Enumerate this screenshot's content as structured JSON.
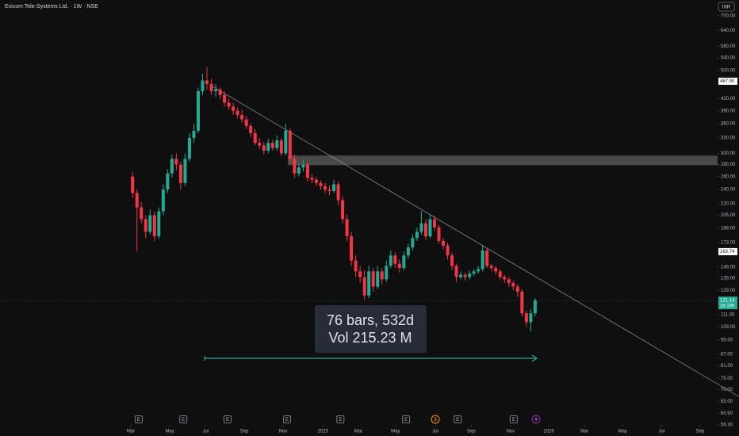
{
  "chart_data": {
    "type": "candlestick",
    "title": "Exicom Tele-Systems Ltd. · 1W · NSE",
    "currency": "INR",
    "log_scale": true,
    "up_color": "#22ab94",
    "down_color": "#f23645",
    "ylim": [
      56.3,
      700
    ],
    "yticks": [
      {
        "value": 700,
        "label": "700.00"
      },
      {
        "value": 640,
        "label": "640.00"
      },
      {
        "value": 580,
        "label": "580.00"
      },
      {
        "value": 540,
        "label": "540.00"
      },
      {
        "value": 500,
        "label": "500.00"
      },
      {
        "value": 420,
        "label": "420.00"
      },
      {
        "value": 390,
        "label": "390.00"
      },
      {
        "value": 360,
        "label": "360.00"
      },
      {
        "value": 330,
        "label": "330.00"
      },
      {
        "value": 300,
        "label": "300.00"
      },
      {
        "value": 280,
        "label": "280.00"
      },
      {
        "value": 260,
        "label": "260.00"
      },
      {
        "value": 240,
        "label": "240.00"
      },
      {
        "value": 220,
        "label": "220.00"
      },
      {
        "value": 205,
        "label": "205.00"
      },
      {
        "value": 189,
        "label": "189.00"
      },
      {
        "value": 173,
        "label": "173.00"
      },
      {
        "value": 149,
        "label": "149.00"
      },
      {
        "value": 139,
        "label": "139.00"
      },
      {
        "value": 129,
        "label": "129.00"
      },
      {
        "value": 111,
        "label": "111.00"
      },
      {
        "value": 103,
        "label": "103.00"
      },
      {
        "value": 95,
        "label": "95.00"
      },
      {
        "value": 87,
        "label": "87.00"
      },
      {
        "value": 81,
        "label": "81.00"
      },
      {
        "value": 75,
        "label": "75.00"
      },
      {
        "value": 70,
        "label": "70.00"
      },
      {
        "value": 65,
        "label": "65.00"
      },
      {
        "value": 60.5,
        "label": "60.50"
      },
      {
        "value": 56.3,
        "label": "56.30"
      }
    ],
    "xlim": [
      -30.3,
      133.7
    ],
    "xticks": [
      {
        "value": -0.4,
        "label": "Mar"
      },
      {
        "value": 8.5,
        "label": "May"
      },
      {
        "value": 16.7,
        "label": "Jul"
      },
      {
        "value": 25.5,
        "label": "Sep"
      },
      {
        "value": 34.4,
        "label": "Nov"
      },
      {
        "value": 43.5,
        "label": "2025"
      },
      {
        "value": 51.6,
        "label": "Mar"
      },
      {
        "value": 60.1,
        "label": "May"
      },
      {
        "value": 69.2,
        "label": "Jul"
      },
      {
        "value": 77.4,
        "label": "Sep"
      },
      {
        "value": 86.4,
        "label": "Nov"
      },
      {
        "value": 95.1,
        "label": "2026"
      },
      {
        "value": 103.3,
        "label": "Mar"
      },
      {
        "value": 112,
        "label": "May"
      },
      {
        "value": 120.9,
        "label": "Jul"
      },
      {
        "value": 129.7,
        "label": "Sep"
      }
    ],
    "ohlc": [
      [
        260,
        268,
        228,
        235
      ],
      [
        235,
        240,
        164,
        215
      ],
      [
        215,
        222,
        195,
        200
      ],
      [
        200,
        205,
        178,
        185
      ],
      [
        185,
        212,
        182,
        205
      ],
      [
        205,
        210,
        175,
        180
      ],
      [
        180,
        215,
        177,
        210
      ],
      [
        210,
        248,
        205,
        240
      ],
      [
        240,
        272,
        235,
        265
      ],
      [
        265,
        298,
        258,
        290
      ],
      [
        290,
        300,
        270,
        280
      ],
      [
        280,
        285,
        240,
        250
      ],
      [
        250,
        300,
        245,
        290
      ],
      [
        290,
        340,
        285,
        330
      ],
      [
        330,
        360,
        320,
        345
      ],
      [
        345,
        450,
        340,
        440
      ],
      [
        440,
        490,
        430,
        470
      ],
      [
        470,
        510,
        445,
        460
      ],
      [
        460,
        475,
        430,
        440
      ],
      [
        440,
        460,
        425,
        445
      ],
      [
        445,
        450,
        420,
        430
      ],
      [
        430,
        440,
        400,
        410
      ],
      [
        410,
        420,
        392,
        400
      ],
      [
        400,
        410,
        380,
        390
      ],
      [
        390,
        398,
        372,
        380
      ],
      [
        380,
        392,
        362,
        370
      ],
      [
        370,
        378,
        348,
        355
      ],
      [
        355,
        362,
        332,
        340
      ],
      [
        340,
        348,
        315,
        320
      ],
      [
        320,
        330,
        308,
        315
      ],
      [
        315,
        322,
        298,
        305
      ],
      [
        305,
        328,
        300,
        320
      ],
      [
        320,
        326,
        305,
        310
      ],
      [
        310,
        335,
        305,
        325
      ],
      [
        325,
        330,
        295,
        300
      ],
      [
        300,
        360,
        296,
        345
      ],
      [
        345,
        350,
        282,
        290
      ],
      [
        290,
        298,
        258,
        265
      ],
      [
        265,
        282,
        260,
        275
      ],
      [
        275,
        288,
        268,
        280
      ],
      [
        280,
        284,
        252,
        258
      ],
      [
        258,
        264,
        250,
        255
      ],
      [
        255,
        260,
        245,
        250
      ],
      [
        250,
        254,
        240,
        245
      ],
      [
        245,
        250,
        235,
        240
      ],
      [
        240,
        246,
        232,
        238
      ],
      [
        238,
        255,
        235,
        248
      ],
      [
        248,
        252,
        218,
        225
      ],
      [
        225,
        230,
        195,
        200
      ],
      [
        200,
        206,
        175,
        180
      ],
      [
        180,
        185,
        150,
        155
      ],
      [
        155,
        160,
        140,
        145
      ],
      [
        145,
        150,
        135,
        140
      ],
      [
        140,
        146,
        122,
        125
      ],
      [
        125,
        150,
        123,
        145
      ],
      [
        145,
        148,
        128,
        132
      ],
      [
        132,
        150,
        130,
        145
      ],
      [
        145,
        148,
        134,
        138
      ],
      [
        138,
        155,
        136,
        150
      ],
      [
        150,
        165,
        148,
        160
      ],
      [
        160,
        163,
        148,
        152
      ],
      [
        152,
        156,
        144,
        148
      ],
      [
        148,
        164,
        146,
        160
      ],
      [
        160,
        172,
        157,
        168
      ],
      [
        168,
        182,
        165,
        178
      ],
      [
        178,
        190,
        175,
        185
      ],
      [
        185,
        210,
        182,
        195
      ],
      [
        195,
        200,
        176,
        180
      ],
      [
        180,
        206,
        178,
        200
      ],
      [
        200,
        204,
        186,
        190
      ],
      [
        190,
        193,
        172,
        175
      ],
      [
        175,
        178,
        166,
        170
      ],
      [
        170,
        173,
        156,
        160
      ],
      [
        160,
        163,
        146,
        150
      ],
      [
        150,
        152,
        136,
        140
      ],
      [
        140,
        145,
        138,
        142
      ],
      [
        142,
        144,
        137,
        140
      ],
      [
        140,
        146,
        138,
        143
      ],
      [
        143,
        147,
        141,
        145
      ],
      [
        145,
        150,
        143,
        147
      ],
      [
        147,
        170,
        145,
        165
      ],
      [
        165,
        167,
        148,
        150
      ],
      [
        150,
        152,
        145,
        148
      ],
      [
        148,
        150,
        142,
        145
      ],
      [
        145,
        147,
        138,
        140
      ],
      [
        140,
        142,
        135,
        138
      ],
      [
        138,
        140,
        132,
        135
      ],
      [
        135,
        137,
        129,
        132
      ],
      [
        132,
        134,
        124,
        128
      ],
      [
        128,
        130,
        110,
        112
      ],
      [
        112,
        114,
        103,
        106
      ],
      [
        106,
        115,
        100,
        112
      ],
      [
        112,
        123,
        110,
        121.14
      ]
    ],
    "trendline": [
      [
        18,
        455
      ],
      [
        138.6,
        67
      ]
    ],
    "zone": {
      "start": 35.5,
      "low": 279,
      "high": 296
    },
    "price_markers": [
      {
        "value": 467.9,
        "label": "467.90"
      },
      {
        "value": 163.74,
        "label": "163.74"
      }
    ],
    "last_price": {
      "value": 121.14,
      "label": "121.14",
      "countdown": "2d 19h"
    },
    "measure": {
      "from": 16.5,
      "to": 92.4,
      "bars": "76 bars, 532d",
      "volume": "Vol 215.23 M"
    },
    "events": [
      {
        "x": 1.4,
        "label": "E"
      },
      {
        "x": 11.6,
        "label": "E"
      },
      {
        "x": 21.7,
        "label": "E"
      },
      {
        "x": 35.3,
        "label": "E"
      },
      {
        "x": 47.5,
        "label": "E"
      },
      {
        "x": 62.5,
        "label": "E"
      },
      {
        "x": 69.2,
        "label": "$"
      },
      {
        "x": 74.3,
        "label": "E"
      },
      {
        "x": 87.1,
        "label": "E"
      }
    ]
  }
}
